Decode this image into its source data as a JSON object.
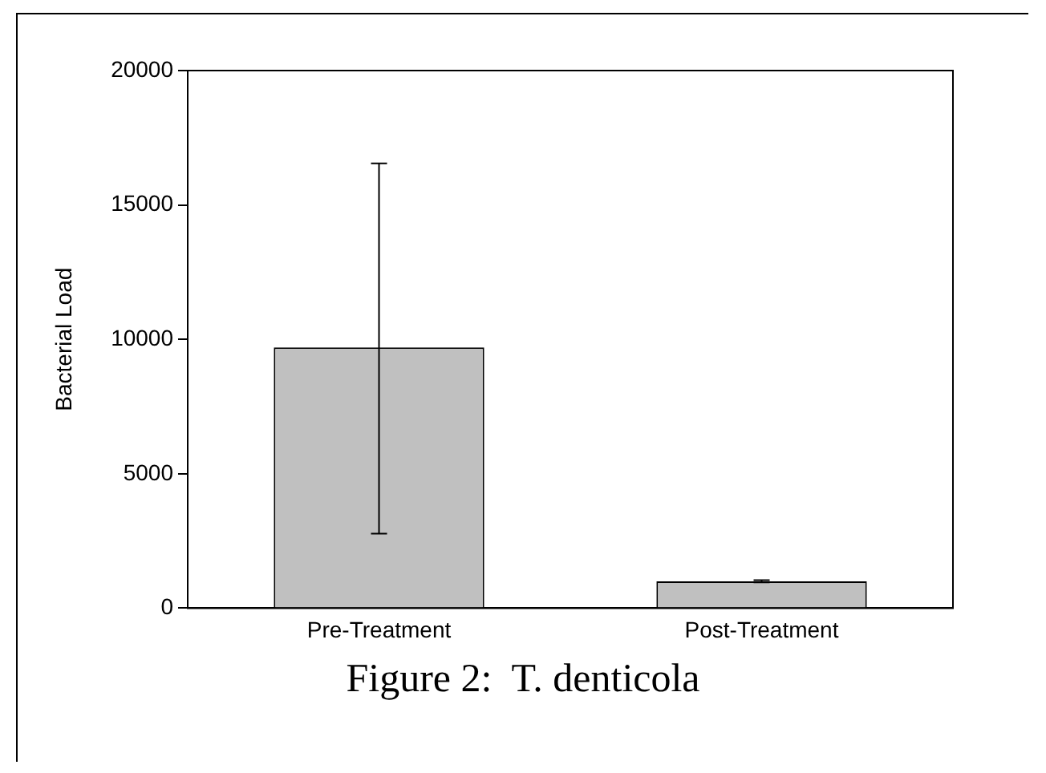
{
  "chart_data": {
    "type": "bar",
    "categories": [
      "Pre-Treatment",
      "Post-Treatment"
    ],
    "values": [
      9700,
      1000
    ],
    "errors": [
      [
        2770,
        16550
      ],
      [
        960,
        1040
      ]
    ],
    "color": "#c0c0c0",
    "ylabel": "Bacterial Load",
    "ylim": [
      0,
      20000
    ],
    "yticks": [
      0,
      5000,
      10000,
      15000,
      20000
    ],
    "grid": false,
    "legend": false,
    "annotations": [
      "Figure 2:  T. denticola"
    ]
  }
}
